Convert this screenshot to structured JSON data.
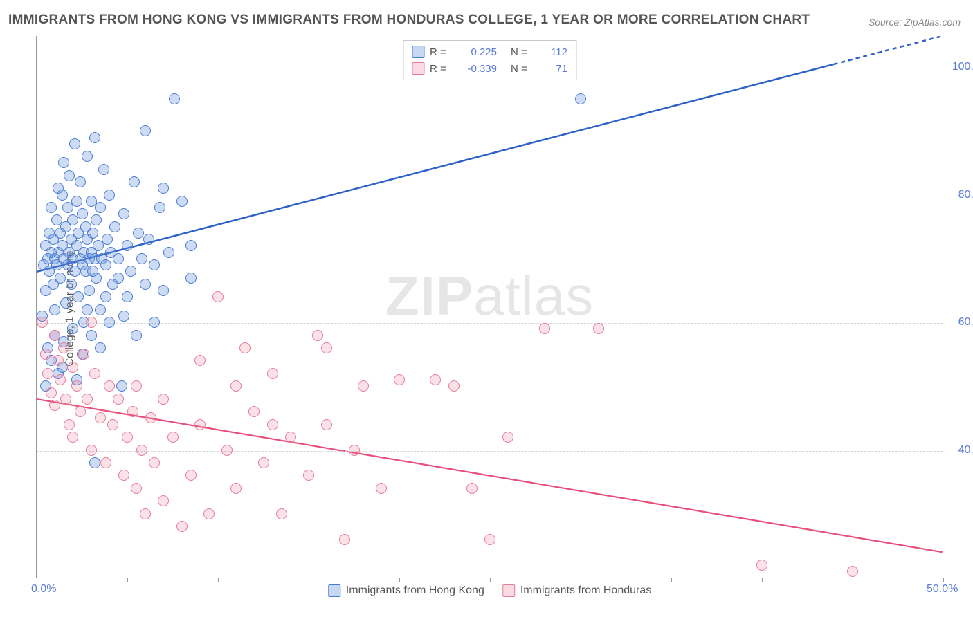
{
  "title": "IMMIGRANTS FROM HONG KONG VS IMMIGRANTS FROM HONDURAS COLLEGE, 1 YEAR OR MORE CORRELATION CHART",
  "source": "Source: ZipAtlas.com",
  "ylabel": "College, 1 year or more",
  "watermark_bold": "ZIP",
  "watermark_light": "atlas",
  "chart": {
    "type": "scatter",
    "xlim": [
      0,
      50
    ],
    "ylim": [
      20,
      105
    ],
    "xtick_values": [
      0,
      5,
      10,
      15,
      20,
      25,
      30,
      35,
      40,
      45,
      50
    ],
    "xtick_labels": {
      "0": "0.0%",
      "50": "50.0%"
    },
    "ytick_values": [
      40,
      60,
      80,
      100
    ],
    "ytick_labels": {
      "40": "40.0%",
      "60": "60.0%",
      "80": "80.0%",
      "100": "100.0%"
    },
    "grid_color": "#d5d5d5",
    "axis_color": "#999999",
    "background_color": "#ffffff",
    "marker_radius": 8,
    "series": [
      {
        "name": "Immigrants from Hong Kong",
        "color_fill": "rgba(91,139,219,0.30)",
        "color_stroke": "#4b7bd1",
        "r_label": "R =",
        "r_value": "0.225",
        "n_label": "N =",
        "n_value": "112",
        "trend": {
          "x1": 0,
          "y1": 68,
          "x2": 50,
          "y2": 105,
          "color": "#2e61c7",
          "width": 2.5,
          "dash_after_x": 44
        },
        "points": [
          [
            0.3,
            61
          ],
          [
            0.4,
            69
          ],
          [
            0.5,
            72
          ],
          [
            0.5,
            65
          ],
          [
            0.6,
            70
          ],
          [
            0.7,
            74
          ],
          [
            0.7,
            68
          ],
          [
            0.8,
            78
          ],
          [
            0.8,
            71
          ],
          [
            0.9,
            66
          ],
          [
            0.9,
            73
          ],
          [
            1.0,
            70
          ],
          [
            1.0,
            62
          ],
          [
            1.1,
            76
          ],
          [
            1.1,
            69
          ],
          [
            1.2,
            81
          ],
          [
            1.2,
            71
          ],
          [
            1.3,
            67
          ],
          [
            1.3,
            74
          ],
          [
            1.4,
            80
          ],
          [
            1.4,
            72
          ],
          [
            1.5,
            85
          ],
          [
            1.5,
            70
          ],
          [
            1.6,
            63
          ],
          [
            1.6,
            75
          ],
          [
            1.7,
            69
          ],
          [
            1.7,
            78
          ],
          [
            1.8,
            71
          ],
          [
            1.8,
            83
          ],
          [
            1.9,
            66
          ],
          [
            1.9,
            73
          ],
          [
            2.0,
            76
          ],
          [
            2.0,
            70
          ],
          [
            2.1,
            88
          ],
          [
            2.1,
            68
          ],
          [
            2.2,
            79
          ],
          [
            2.2,
            72
          ],
          [
            2.3,
            64
          ],
          [
            2.3,
            74
          ],
          [
            2.4,
            70
          ],
          [
            2.4,
            82
          ],
          [
            2.5,
            69
          ],
          [
            2.5,
            77
          ],
          [
            2.6,
            71
          ],
          [
            2.6,
            60
          ],
          [
            2.7,
            75
          ],
          [
            2.7,
            68
          ],
          [
            2.8,
            73
          ],
          [
            2.8,
            86
          ],
          [
            2.9,
            70
          ],
          [
            2.9,
            65
          ],
          [
            3.0,
            79
          ],
          [
            3.0,
            71
          ],
          [
            3.1,
            68
          ],
          [
            3.1,
            74
          ],
          [
            3.2,
            89
          ],
          [
            3.2,
            70
          ],
          [
            3.3,
            67
          ],
          [
            3.3,
            76
          ],
          [
            3.4,
            72
          ],
          [
            3.5,
            56
          ],
          [
            3.5,
            78
          ],
          [
            3.6,
            70
          ],
          [
            3.7,
            84
          ],
          [
            3.8,
            69
          ],
          [
            3.9,
            73
          ],
          [
            4.0,
            80
          ],
          [
            4.1,
            71
          ],
          [
            4.2,
            66
          ],
          [
            4.3,
            75
          ],
          [
            4.5,
            70
          ],
          [
            4.7,
            50
          ],
          [
            4.8,
            77
          ],
          [
            5.0,
            72
          ],
          [
            5.2,
            68
          ],
          [
            5.4,
            82
          ],
          [
            5.6,
            74
          ],
          [
            5.8,
            70
          ],
          [
            6.0,
            90
          ],
          [
            6.2,
            73
          ],
          [
            6.5,
            69
          ],
          [
            6.8,
            78
          ],
          [
            7.0,
            81
          ],
          [
            7.3,
            71
          ],
          [
            7.6,
            95
          ],
          [
            8.0,
            79
          ],
          [
            8.5,
            72
          ],
          [
            2.0,
            59
          ],
          [
            2.5,
            55
          ],
          [
            3.0,
            58
          ],
          [
            3.5,
            62
          ],
          [
            4.0,
            60
          ],
          [
            1.0,
            58
          ],
          [
            1.5,
            57
          ],
          [
            0.6,
            56
          ],
          [
            0.8,
            54
          ],
          [
            1.2,
            52
          ],
          [
            3.2,
            38
          ],
          [
            5.0,
            64
          ],
          [
            4.5,
            67
          ],
          [
            6.0,
            66
          ],
          [
            7.0,
            65
          ],
          [
            8.5,
            67
          ],
          [
            2.8,
            62
          ],
          [
            3.8,
            64
          ],
          [
            4.8,
            61
          ],
          [
            5.5,
            58
          ],
          [
            6.5,
            60
          ],
          [
            1.4,
            53
          ],
          [
            2.2,
            51
          ],
          [
            30.0,
            95
          ],
          [
            0.5,
            50
          ]
        ]
      },
      {
        "name": "Immigrants from Honduras",
        "color_fill": "rgba(235,120,150,0.22)",
        "color_stroke": "#e77b9a",
        "r_label": "R =",
        "r_value": "-0.339",
        "n_label": "N =",
        "n_value": "71",
        "trend": {
          "x1": 0,
          "y1": 48,
          "x2": 50,
          "y2": 24,
          "color": "#e94e7a",
          "width": 2.2
        },
        "points": [
          [
            0.3,
            60
          ],
          [
            0.5,
            55
          ],
          [
            0.6,
            52
          ],
          [
            0.8,
            49
          ],
          [
            1.0,
            58
          ],
          [
            1.0,
            47
          ],
          [
            1.2,
            54
          ],
          [
            1.3,
            51
          ],
          [
            1.5,
            56
          ],
          [
            1.6,
            48
          ],
          [
            1.8,
            44
          ],
          [
            2.0,
            53
          ],
          [
            2.0,
            42
          ],
          [
            2.2,
            50
          ],
          [
            2.4,
            46
          ],
          [
            2.6,
            55
          ],
          [
            2.8,
            48
          ],
          [
            3.0,
            40
          ],
          [
            3.2,
            52
          ],
          [
            3.5,
            45
          ],
          [
            3.8,
            38
          ],
          [
            4.0,
            50
          ],
          [
            4.2,
            44
          ],
          [
            4.5,
            48
          ],
          [
            4.8,
            36
          ],
          [
            5.0,
            42
          ],
          [
            5.3,
            46
          ],
          [
            5.5,
            34
          ],
          [
            5.8,
            40
          ],
          [
            6.0,
            30
          ],
          [
            6.3,
            45
          ],
          [
            6.5,
            38
          ],
          [
            7.0,
            32
          ],
          [
            7.5,
            42
          ],
          [
            8.0,
            28
          ],
          [
            8.5,
            36
          ],
          [
            9.0,
            44
          ],
          [
            9.5,
            30
          ],
          [
            10.0,
            64
          ],
          [
            10.5,
            40
          ],
          [
            11.0,
            34
          ],
          [
            11.5,
            56
          ],
          [
            12.0,
            46
          ],
          [
            12.5,
            38
          ],
          [
            13.0,
            52
          ],
          [
            13.5,
            30
          ],
          [
            14.0,
            42
          ],
          [
            15.0,
            36
          ],
          [
            15.5,
            58
          ],
          [
            16.0,
            44
          ],
          [
            17.0,
            26
          ],
          [
            17.5,
            40
          ],
          [
            18.0,
            50
          ],
          [
            19.0,
            34
          ],
          [
            20.0,
            51
          ],
          [
            22.0,
            51
          ],
          [
            23.0,
            50
          ],
          [
            24.0,
            34
          ],
          [
            25.0,
            26
          ],
          [
            26.0,
            42
          ],
          [
            28.0,
            59
          ],
          [
            31.0,
            59
          ],
          [
            3.0,
            60
          ],
          [
            5.5,
            50
          ],
          [
            7.0,
            48
          ],
          [
            9.0,
            54
          ],
          [
            11.0,
            50
          ],
          [
            13.0,
            44
          ],
          [
            16.0,
            56
          ],
          [
            40.0,
            22
          ],
          [
            45.0,
            21
          ]
        ]
      }
    ]
  }
}
